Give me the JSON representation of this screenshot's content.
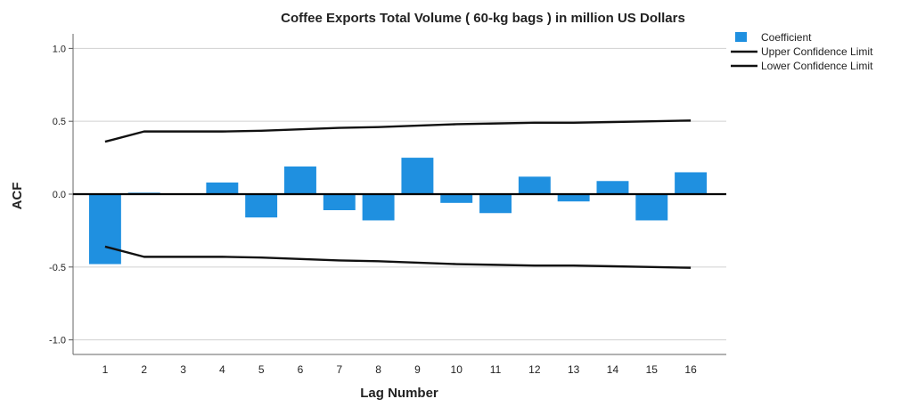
{
  "chart_data": {
    "type": "bar",
    "title": "Coffee Exports Total Volume ( 60-kg bags ) in million US Dollars",
    "xlabel": "Lag Number",
    "ylabel": "ACF",
    "ylim": [
      -1.1,
      1.1
    ],
    "yticks": [
      "1.0",
      "0.5",
      "0.0",
      "-0.5",
      "-1.0"
    ],
    "ytick_values": [
      1.0,
      0.5,
      0.0,
      -0.5,
      -1.0
    ],
    "grid": true,
    "legend_position": "top-right",
    "categories": [
      "1",
      "2",
      "3",
      "4",
      "5",
      "6",
      "7",
      "8",
      "9",
      "10",
      "11",
      "12",
      "13",
      "14",
      "15",
      "16"
    ],
    "series": [
      {
        "name": "Coefficient",
        "kind": "bar",
        "color": "#1f90e0",
        "values": [
          -0.48,
          0.01,
          0.0,
          0.08,
          -0.16,
          0.19,
          -0.11,
          -0.18,
          0.25,
          -0.06,
          -0.13,
          0.12,
          -0.05,
          0.09,
          -0.18,
          0.15
        ]
      },
      {
        "name": "Upper Confidence Limit",
        "kind": "line",
        "color": "#111111",
        "values": [
          0.36,
          0.43,
          0.43,
          0.43,
          0.435,
          0.445,
          0.455,
          0.46,
          0.47,
          0.48,
          0.485,
          0.49,
          0.49,
          0.495,
          0.5,
          0.505
        ]
      },
      {
        "name": "Lower Confidence Limit",
        "kind": "line",
        "color": "#111111",
        "values": [
          -0.36,
          -0.43,
          -0.43,
          -0.43,
          -0.435,
          -0.445,
          -0.455,
          -0.46,
          -0.47,
          -0.48,
          -0.485,
          -0.49,
          -0.49,
          -0.495,
          -0.5,
          -0.505
        ]
      }
    ]
  }
}
